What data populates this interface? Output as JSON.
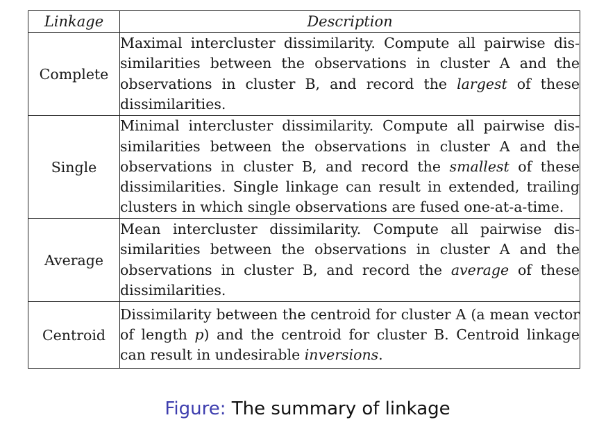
{
  "table": {
    "headers": [
      "Linkage",
      "Description"
    ],
    "rows": [
      {
        "name": "Complete",
        "desc_parts": [
          "Maximal intercluster dissimilarity. Compute all pairwise dis­similarities between the observations in cluster A and the observations in cluster B, and record the ",
          "largest",
          " of these dissimilarities."
        ]
      },
      {
        "name": "Single",
        "desc_parts": [
          "Minimal intercluster dissimilarity. Compute all pairwise dis­similarities between the observations in cluster A and the observations in cluster B, and record the ",
          "smallest",
          " of these dissimilarities. Single linkage can result in extended, trailing clusters in which single observations are fused one-at-a-time."
        ]
      },
      {
        "name": "Average",
        "desc_parts": [
          "Mean intercluster dissimilarity. Compute all pairwise dis­similarities between the observations in cluster A and the observations in cluster B, and record the ",
          "average",
          " of these dissimilarities."
        ]
      },
      {
        "name": "Centroid",
        "desc_parts": [
          "Dissimilarity between the centroid for cluster A (a mean vector of length ",
          "p",
          ") and the centroid for cluster B. Centroid linkage can result in undesirable ",
          "inversions",
          "."
        ]
      }
    ]
  },
  "caption": {
    "label": "Figure:",
    "text": " The summary of linkage"
  }
}
